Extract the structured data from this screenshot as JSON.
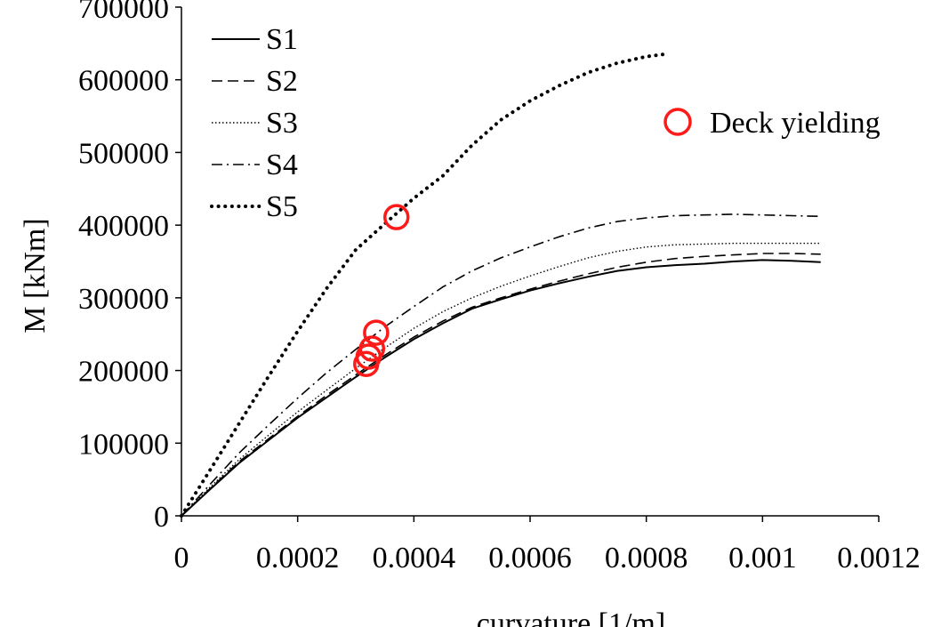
{
  "chart_data": {
    "type": "line",
    "title": "",
    "xlabel": "curvature [1/m]",
    "ylabel": "M [kNm]",
    "xlim": [
      0,
      0.0012
    ],
    "ylim": [
      0,
      700000
    ],
    "x_ticks": [
      "0",
      "0.0002",
      "0.0004",
      "0.0006",
      "0.0008",
      "0.001",
      "0.0012"
    ],
    "y_ticks": [
      "0",
      "100000",
      "200000",
      "300000",
      "400000",
      "500000",
      "600000",
      "700000"
    ],
    "x_tick_values": [
      0,
      0.0002,
      0.0004,
      0.0006,
      0.0008,
      0.001,
      0.0012
    ],
    "y_tick_values": [
      0,
      100000,
      200000,
      300000,
      400000,
      500000,
      600000,
      700000
    ],
    "grid": false,
    "legend_position": "top-left",
    "series": [
      {
        "name": "S1",
        "style": "solid",
        "x": [
          0,
          5e-05,
          0.0001,
          0.00015,
          0.0002,
          0.00025,
          0.0003,
          0.00035,
          0.0004,
          0.00045,
          0.0005,
          0.00055,
          0.0006,
          0.00065,
          0.0007,
          0.00075,
          0.0008,
          0.00085,
          0.0009,
          0.00095,
          0.001,
          0.00105,
          0.0011
        ],
        "y": [
          0,
          37000,
          73000,
          104000,
          135000,
          163000,
          191000,
          218000,
          243000,
          265000,
          285000,
          298000,
          310000,
          320000,
          329000,
          337000,
          342000,
          345000,
          347000,
          350000,
          352000,
          351000,
          349000
        ]
      },
      {
        "name": "S2",
        "style": "dashed",
        "x": [
          0,
          5e-05,
          0.0001,
          0.00015,
          0.0002,
          0.00025,
          0.0003,
          0.00035,
          0.0004,
          0.00045,
          0.0005,
          0.00055,
          0.0006,
          0.00065,
          0.0007,
          0.00075,
          0.0008,
          0.00085,
          0.0009,
          0.00095,
          0.001,
          0.00105,
          0.0011
        ],
        "y": [
          0,
          38000,
          75000,
          106000,
          137000,
          166000,
          194000,
          221000,
          246000,
          268000,
          287000,
          300000,
          312000,
          323000,
          333000,
          342000,
          349000,
          354000,
          357000,
          359000,
          361000,
          361000,
          360000
        ]
      },
      {
        "name": "S3",
        "style": "dotted",
        "x": [
          0,
          5e-05,
          0.0001,
          0.00015,
          0.0002,
          0.00025,
          0.0003,
          0.00035,
          0.0004,
          0.00045,
          0.0005,
          0.00055,
          0.0006,
          0.00065,
          0.0007,
          0.00075,
          0.0008,
          0.00085,
          0.0009,
          0.00095,
          0.001,
          0.00105,
          0.0011
        ],
        "y": [
          0,
          40000,
          78000,
          111000,
          143000,
          173000,
          203000,
          231000,
          258000,
          281000,
          300000,
          316000,
          330000,
          343000,
          355000,
          364000,
          370000,
          373000,
          374000,
          375000,
          375000,
          375000,
          375000
        ]
      },
      {
        "name": "S4",
        "style": "dashdot",
        "x": [
          0,
          5e-05,
          0.0001,
          0.00015,
          0.0002,
          0.00025,
          0.0003,
          0.00035,
          0.0004,
          0.00045,
          0.0005,
          0.00055,
          0.0006,
          0.00065,
          0.0007,
          0.00075,
          0.0008,
          0.00085,
          0.0009,
          0.00095,
          0.001,
          0.00105,
          0.0011
        ],
        "y": [
          0,
          44000,
          87000,
          125000,
          162000,
          197000,
          229000,
          260000,
          288000,
          315000,
          337000,
          355000,
          370000,
          384000,
          396000,
          405000,
          410000,
          413000,
          414000,
          415000,
          414000,
          413000,
          412000
        ]
      },
      {
        "name": "S5",
        "style": "heavy-dotted",
        "x": [
          0,
          5e-05,
          0.0001,
          0.00015,
          0.0002,
          0.00025,
          0.0003,
          0.00035,
          0.0004,
          0.00045,
          0.0005,
          0.00055,
          0.0006,
          0.00065,
          0.0007,
          0.00075,
          0.0008,
          0.00083
        ],
        "y": [
          0,
          64000,
          128000,
          192000,
          254000,
          313000,
          366000,
          402000,
          437000,
          468000,
          510000,
          545000,
          571000,
          592000,
          610000,
          623000,
          632000,
          635000
        ]
      }
    ],
    "markers": {
      "name": "Deck yielding",
      "color": "#ff1a1a",
      "points": [
        {
          "x": 0.00037,
          "y": 411000
        },
        {
          "x": 0.000335,
          "y": 252000
        },
        {
          "x": 0.000328,
          "y": 230000
        },
        {
          "x": 0.000322,
          "y": 219000
        },
        {
          "x": 0.000318,
          "y": 209000
        }
      ]
    },
    "legend": [
      "S1",
      "S2",
      "S3",
      "S4",
      "S5"
    ]
  }
}
